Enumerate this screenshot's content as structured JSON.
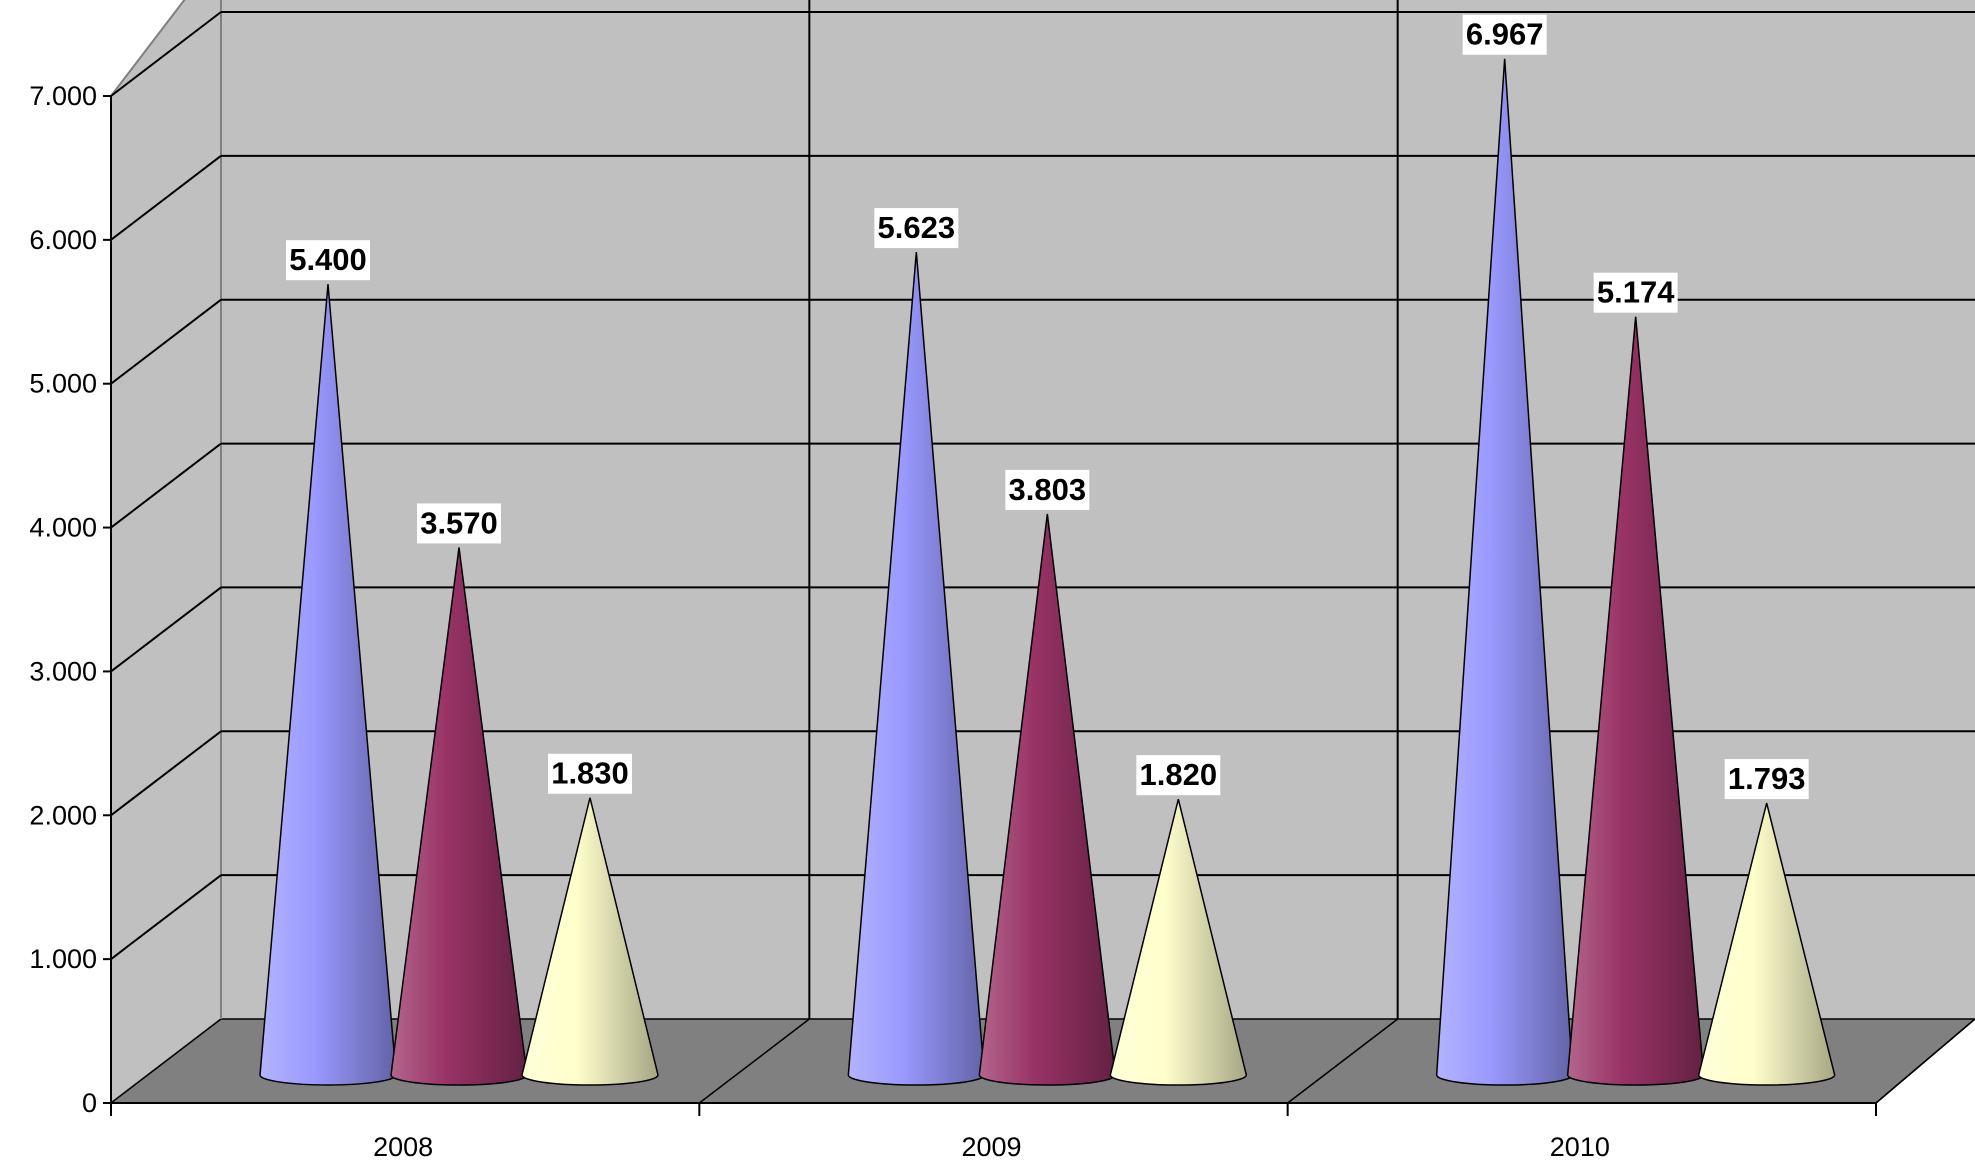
{
  "colors": {
    "wall": "#c0c0c0",
    "floor": "#808080",
    "series_blue": "#9999ff",
    "series_maroon": "#993366",
    "series_cream": "#ffffcc",
    "label_bg": "#ffffff"
  },
  "chart_data": {
    "type": "bar",
    "style": "3d-cone",
    "title": "",
    "xlabel": "",
    "ylabel": "",
    "categories": [
      "2008",
      "2009",
      "2010"
    ],
    "ylim": [
      0,
      7000
    ],
    "ytick_values": [
      0,
      1000,
      2000,
      3000,
      4000,
      5000,
      6000,
      7000
    ],
    "ytick_labels": [
      "0",
      "1.000",
      "2.000",
      "3.000",
      "4.000",
      "5.000",
      "6.000",
      "7.000"
    ],
    "grid": true,
    "legend": "none",
    "series": [
      {
        "values": [
          5400,
          5623,
          6967
        ],
        "labels": [
          "5.400",
          "5.623",
          "6.967"
        ],
        "color": "#9999ff"
      },
      {
        "values": [
          3570,
          3803,
          5174
        ],
        "labels": [
          "3.570",
          "3.803",
          "5.174"
        ],
        "color": "#993366"
      },
      {
        "values": [
          1830,
          1820,
          1793
        ],
        "labels": [
          "1.830",
          "1.820",
          "1.793"
        ],
        "color": "#ffffcc"
      }
    ]
  }
}
